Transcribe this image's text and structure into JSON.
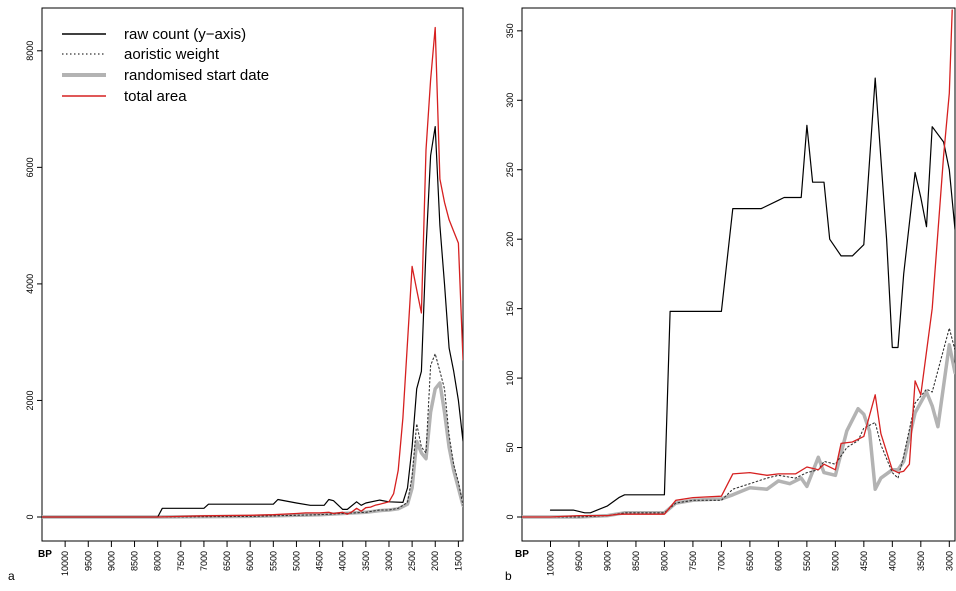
{
  "colors": {
    "raw_count": "#000000",
    "aoristic_weight": "#333333",
    "randomised_start_date": "#b3b3b3",
    "total_area": "#d62020"
  },
  "chart_data": [
    {
      "panel": "a",
      "type": "line",
      "x_axis_prefix": "BP",
      "xlim": [
        10500,
        1400
      ],
      "ylim": [
        0,
        8700
      ],
      "x_ticks": [
        10000,
        9500,
        9000,
        8500,
        8000,
        7500,
        7000,
        6500,
        6000,
        5500,
        5000,
        4500,
        4000,
        3500,
        3000,
        2500,
        2000,
        1500
      ],
      "y_ticks": [
        0,
        2000,
        4000,
        6000,
        8000
      ],
      "legend": {
        "placement": "top-left",
        "entries": [
          "raw count (y−axis)",
          "aoristic weight",
          "randomised start date",
          "total area"
        ]
      },
      "series": [
        {
          "name": "raw count (y−axis)",
          "style": "solid-black",
          "x": [
            10500,
            9000,
            8500,
            8000,
            7900,
            7000,
            6900,
            5500,
            5400,
            5000,
            4700,
            4400,
            4300,
            4200,
            4000,
            3900,
            3700,
            3600,
            3500,
            3200,
            3000,
            2700,
            2600,
            2500,
            2400,
            2300,
            2200,
            2100,
            2000,
            1900,
            1800,
            1700,
            1600,
            1500,
            1400
          ],
          "y": [
            0,
            0,
            0,
            0,
            150,
            150,
            220,
            220,
            300,
            240,
            200,
            200,
            300,
            280,
            130,
            130,
            260,
            200,
            240,
            290,
            260,
            250,
            500,
            1200,
            2200,
            2500,
            4600,
            6200,
            6700,
            5000,
            4000,
            2900,
            2500,
            2000,
            1300
          ]
        },
        {
          "name": "aoristic weight",
          "style": "dotted",
          "x": [
            10500,
            8000,
            6000,
            4500,
            4000,
            3500,
            3200,
            3000,
            2800,
            2600,
            2500,
            2400,
            2300,
            2200,
            2100,
            2000,
            1900,
            1800,
            1700,
            1600,
            1500,
            1400
          ],
          "y": [
            0,
            0,
            10,
            40,
            60,
            80,
            120,
            120,
            150,
            250,
            700,
            1600,
            1200,
            1100,
            2600,
            2800,
            2500,
            2200,
            1400,
            900,
            600,
            200
          ]
        },
        {
          "name": "randomised start date",
          "style": "thick-grey",
          "x": [
            10500,
            8000,
            6000,
            4500,
            4000,
            3500,
            3200,
            3000,
            2800,
            2600,
            2500,
            2400,
            2300,
            2200,
            2100,
            2000,
            1900,
            1800,
            1700,
            1600,
            1500,
            1400
          ],
          "y": [
            0,
            0,
            10,
            40,
            60,
            80,
            110,
            120,
            140,
            220,
            500,
            1300,
            1100,
            1000,
            1800,
            2200,
            2300,
            1800,
            1200,
            800,
            500,
            200
          ]
        },
        {
          "name": "total area",
          "style": "solid-red",
          "x": [
            10500,
            8000,
            7000,
            6000,
            5500,
            5000,
            4800,
            4500,
            4300,
            4200,
            4000,
            3900,
            3800,
            3700,
            3600,
            3500,
            3400,
            3300,
            3200,
            3100,
            3000,
            2900,
            2800,
            2700,
            2600,
            2500,
            2400,
            2300,
            2200,
            2100,
            2000,
            1900,
            1800,
            1700,
            1600,
            1500,
            1400
          ],
          "y": [
            0,
            0,
            20,
            30,
            40,
            60,
            70,
            70,
            80,
            60,
            80,
            50,
            90,
            150,
            100,
            160,
            170,
            200,
            220,
            240,
            260,
            400,
            800,
            1700,
            3000,
            4300,
            3900,
            3500,
            6300,
            7500,
            8400,
            5800,
            5400,
            5100,
            4900,
            4700,
            2700
          ]
        }
      ]
    },
    {
      "panel": "b",
      "type": "line",
      "x_axis_prefix": "BP",
      "xlim": [
        10500,
        2900
      ],
      "ylim": [
        0,
        365
      ],
      "x_ticks": [
        10000,
        9500,
        9000,
        8500,
        8000,
        7500,
        7000,
        6500,
        6000,
        5500,
        5000,
        4500,
        4000,
        3500,
        3000
      ],
      "y_ticks": [
        0,
        50,
        100,
        150,
        200,
        250,
        300,
        350
      ],
      "series": [
        {
          "name": "raw count (y−axis)",
          "style": "solid-black",
          "x": [
            10000,
            9900,
            9700,
            9600,
            9400,
            9300,
            9000,
            8800,
            8700,
            8100,
            8000,
            7900,
            7100,
            7000,
            6800,
            6500,
            6300,
            6000,
            5900,
            5700,
            5600,
            5500,
            5400,
            5200,
            5100,
            4900,
            4700,
            4500,
            4300,
            4100,
            4000,
            3900,
            3800,
            3600,
            3500,
            3400,
            3300,
            3100,
            3000,
            2900
          ],
          "y": [
            5,
            5,
            5,
            5,
            3,
            3,
            8,
            14,
            16,
            16,
            16,
            148,
            148,
            148,
            222,
            222,
            222,
            228,
            230,
            230,
            230,
            282,
            241,
            241,
            200,
            188,
            188,
            196,
            316,
            200,
            122,
            122,
            175,
            248,
            230,
            209,
            281,
            270,
            250,
            207
          ]
        },
        {
          "name": "aoristic weight",
          "style": "dotted",
          "x": [
            10500,
            10000,
            9500,
            9000,
            8700,
            8500,
            8000,
            7800,
            7500,
            7000,
            6800,
            6500,
            6200,
            6000,
            5700,
            5500,
            5300,
            5200,
            5000,
            4800,
            4600,
            4500,
            4300,
            4200,
            4000,
            3900,
            3800,
            3600,
            3400,
            3300,
            3000,
            2900
          ],
          "y": [
            0,
            0,
            0,
            1,
            3,
            3,
            3,
            10,
            12,
            12,
            20,
            24,
            28,
            30,
            28,
            32,
            34,
            40,
            38,
            50,
            55,
            64,
            68,
            52,
            32,
            28,
            44,
            82,
            92,
            90,
            136,
            120
          ]
        },
        {
          "name": "randomised start date",
          "style": "thick-grey",
          "x": [
            10500,
            10000,
            9500,
            9000,
            8700,
            8500,
            8000,
            7800,
            7500,
            7000,
            6800,
            6500,
            6200,
            6000,
            5800,
            5600,
            5500,
            5300,
            5200,
            5000,
            4800,
            4600,
            4500,
            4400,
            4300,
            4200,
            4000,
            3900,
            3800,
            3600,
            3400,
            3300,
            3200,
            3000,
            2900
          ],
          "y": [
            0,
            0,
            0,
            1,
            3,
            3,
            3,
            10,
            12,
            13,
            16,
            21,
            20,
            26,
            24,
            28,
            22,
            43,
            32,
            30,
            62,
            78,
            74,
            62,
            20,
            28,
            34,
            34,
            40,
            75,
            90,
            80,
            65,
            124,
            104
          ]
        },
        {
          "name": "total area",
          "style": "solid-red",
          "x": [
            10500,
            10000,
            9500,
            9000,
            8800,
            8500,
            8000,
            7800,
            7500,
            7000,
            6800,
            6500,
            6200,
            6000,
            5700,
            5500,
            5300,
            5200,
            5000,
            4900,
            4700,
            4500,
            4300,
            4200,
            4000,
            3900,
            3800,
            3700,
            3600,
            3500,
            3300,
            3100,
            3000,
            2950
          ],
          "y": [
            0,
            0,
            1,
            1,
            2,
            2,
            2,
            12,
            14,
            15,
            31,
            32,
            30,
            31,
            31,
            36,
            34,
            38,
            34,
            53,
            54,
            58,
            88,
            60,
            34,
            32,
            33,
            38,
            98,
            88,
            150,
            260,
            305,
            365
          ]
        }
      ]
    }
  ]
}
